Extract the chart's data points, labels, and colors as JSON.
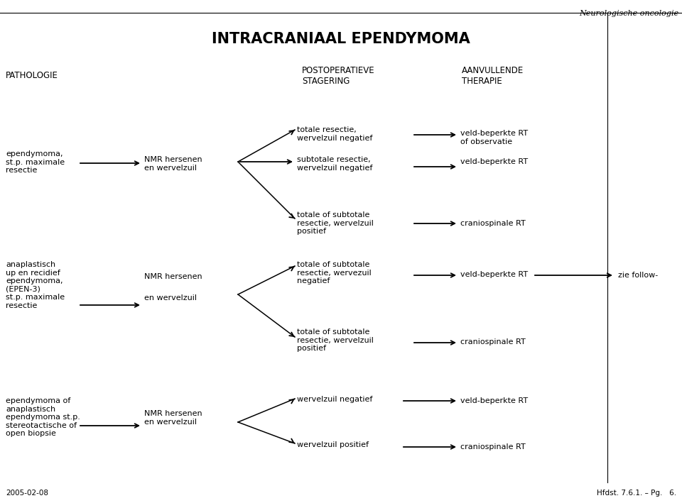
{
  "title": "INTRACRANIAAL EPENDYMOMA",
  "header_italic": "Neurologische oncologie",
  "footer_left": "2005-02-08",
  "footer_right": "Hfdst. 7.6.1. – Pg.   6.",
  "background_color": "#ffffff",
  "text_color": "#000000",
  "line_color": "#000000",
  "font_size_title": 15,
  "font_size_col_header": 8.5,
  "font_size_body": 8,
  "font_size_footer": 7.5,
  "font_size_italic": 8
}
